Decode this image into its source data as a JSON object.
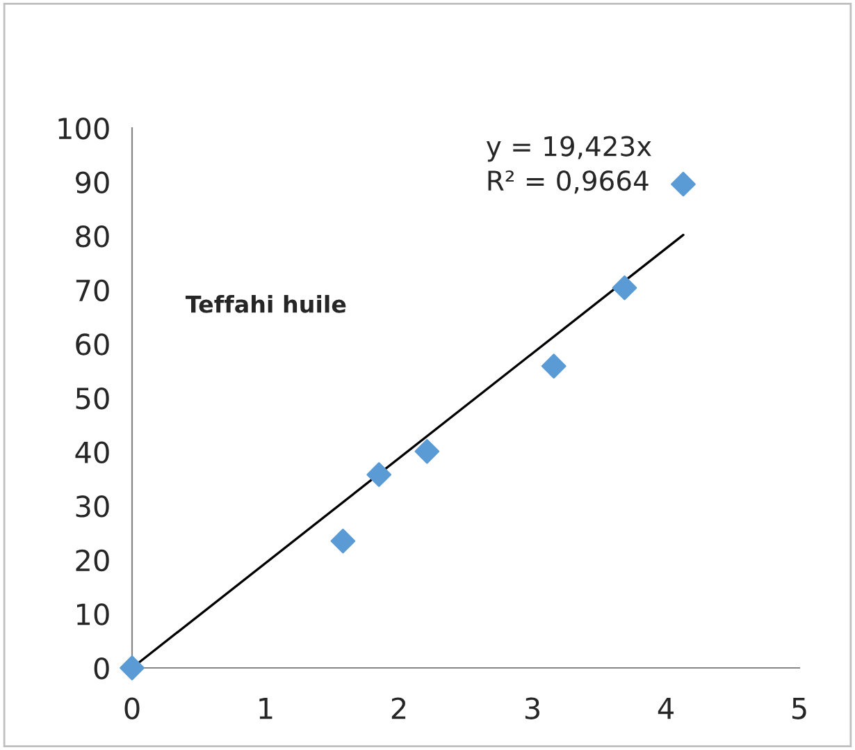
{
  "chart_data": {
    "type": "scatter",
    "x": [
      0,
      1.58,
      1.85,
      2.21,
      3.16,
      3.69,
      4.13
    ],
    "series": [
      {
        "color": "#5b9bd5",
        "marker": "diamond",
        "values": [
          0,
          23.5,
          35.8,
          40.1,
          55.9,
          70.4,
          89.6
        ]
      },
      {
        "type": "line",
        "color": "#000000",
        "x": [
          0,
          4.13
        ],
        "values": [
          0,
          80.2
        ],
        "marker": "none",
        "line_style": "solid"
      }
    ],
    "annotations": [
      "y = 19,423x\nR² = 0,9664",
      "Teffahi huile"
    ],
    "xlim": [
      0,
      5
    ],
    "xticks": [
      0,
      1,
      2,
      3,
      4,
      5
    ],
    "ylim": [
      0,
      100
    ],
    "yticks": [
      0,
      10,
      20,
      30,
      40,
      50,
      60,
      70,
      80,
      90,
      100
    ],
    "grid": false,
    "legend": false
  }
}
